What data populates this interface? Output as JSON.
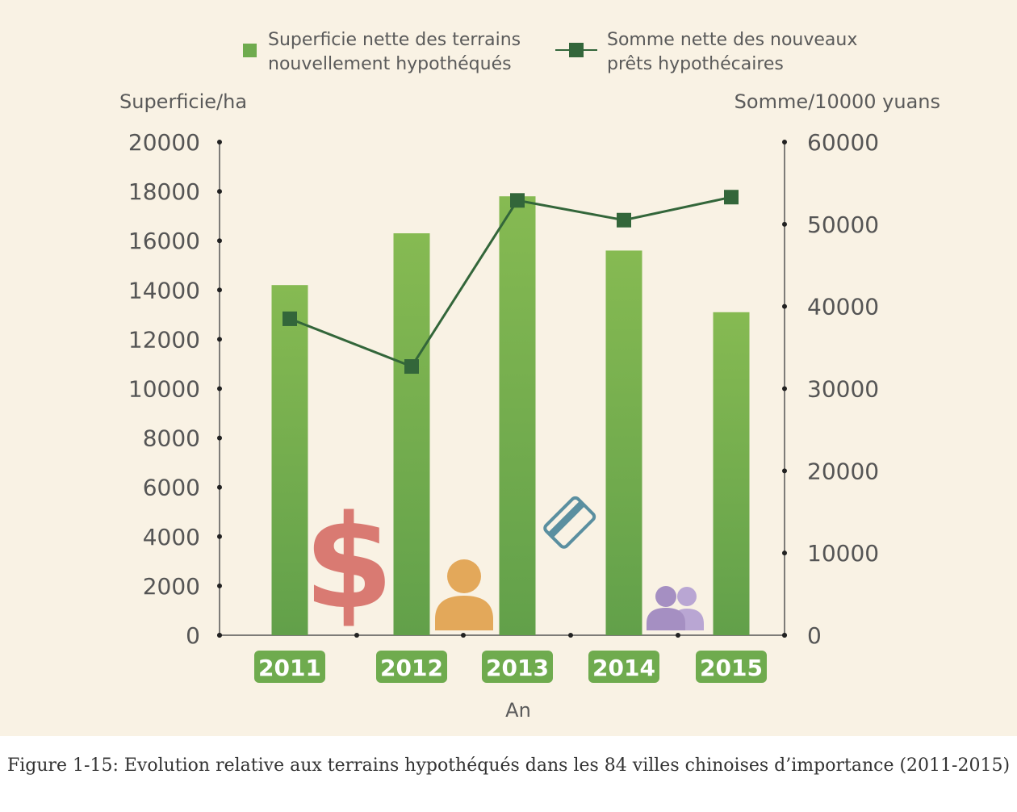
{
  "chart_data": {
    "type": "bar",
    "categories": [
      "2011",
      "2012",
      "2013",
      "2014",
      "2015"
    ],
    "series": [
      {
        "name": "Superficie nette des terrains nouvellement hypothéqués",
        "legend_lines": [
          "Superficie nette des terrains",
          "nouvellement hypothéqués"
        ],
        "kind": "bar",
        "axis": "left",
        "color": "#6fab4e",
        "values": [
          14200,
          16300,
          17800,
          15600,
          13100
        ]
      },
      {
        "name": "Somme nette des nouveaux prêts hypothécaires",
        "legend_lines": [
          "Somme nette des nouveaux",
          "prêts hypothécaires"
        ],
        "kind": "line",
        "axis": "right",
        "color": "#33663a",
        "values": [
          38500,
          32700,
          52900,
          50500,
          53300
        ]
      }
    ],
    "xlabel": "An",
    "ylabel_left": "Superficie/ha",
    "ylabel_right": "Somme/10000 yuans",
    "ylim_left": [
      0,
      20000
    ],
    "ylim_right": [
      0,
      60000
    ],
    "yticks_left": [
      0,
      2000,
      4000,
      6000,
      8000,
      10000,
      12000,
      14000,
      16000,
      18000,
      20000
    ],
    "yticks_right": [
      0,
      10000,
      20000,
      30000,
      40000,
      50000,
      60000
    ],
    "legend_position": "top",
    "grid": false
  },
  "caption": "Figure 1-15: Evolution relative aux terrains hypothéqués dans les 84 villes chinoises d’importance (2011-2015)",
  "decorations": {
    "icons": [
      "dollar-icon",
      "person-icon",
      "credit-card-icon",
      "people-icon"
    ],
    "colors": {
      "dollar": "#d97a72",
      "person": "#e3a85a",
      "card": "#5a8fa0",
      "people": "#a58fc2",
      "year_badge": "#6fab4e"
    }
  }
}
